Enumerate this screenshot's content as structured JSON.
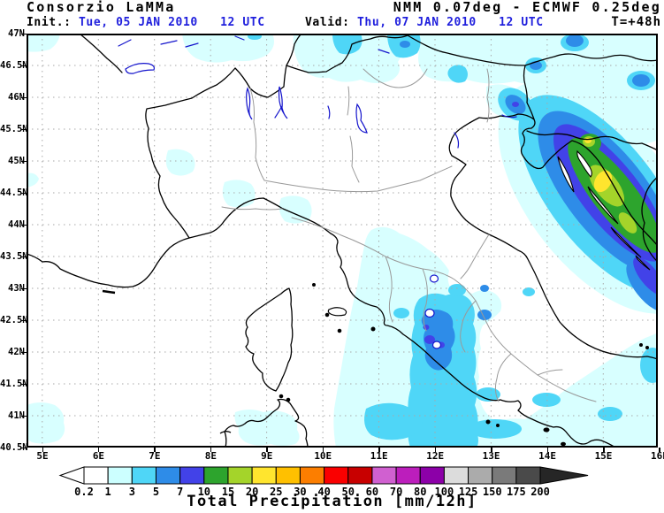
{
  "header": {
    "org": "Consorzio LaMMa",
    "model_line": "NMM 0.07deg - ECMWF 0.25deg",
    "init_label": "Init.:",
    "init_value": " Tue, 05 JAN 2010   12 UTC",
    "valid_label": "Valid:",
    "valid_value": " Thu, 07 JAN 2010   12 UTC",
    "lead": "T=+48h"
  },
  "axes": {
    "lat_labels": [
      "47N",
      "46.5N",
      "46N",
      "45.5N",
      "45N",
      "44.5N",
      "44N",
      "43.5N",
      "43N",
      "42.5N",
      "42N",
      "41.5N",
      "41N",
      "40.5N"
    ],
    "lon_labels": [
      "5E",
      "6E",
      "7E",
      "8E",
      "9E",
      "10E",
      "11E",
      "12E",
      "13E",
      "14E",
      "15E",
      "16E"
    ]
  },
  "colorbar": {
    "title": "Total Precipitation [mm/12h]",
    "ticks": [
      "0.2",
      "1",
      "3",
      "5",
      "7",
      "10",
      "15",
      "20",
      "25",
      "30",
      "40",
      "50",
      "60",
      "70",
      "80",
      "100",
      "125",
      "150",
      "175",
      "200"
    ],
    "colors": [
      "#FFFFFF",
      "#CCFFFF",
      "#4FD6F7",
      "#2E8CE8",
      "#4242E8",
      "#2DA42D",
      "#A4D42A",
      "#FFE52E",
      "#FFC000",
      "#FC7E00",
      "#FA0000",
      "#C80000",
      "#D060D0",
      "#BC1EBC",
      "#8C00A8",
      "#DCDCDC",
      "#ABABAB",
      "#7A7A7A",
      "#4A4A4A"
    ],
    "under_arrow_color": "#FFFFFF",
    "over_arrow_color": "#262626"
  },
  "colors": {
    "text_blue": "#2020DD",
    "grid_gray": "#A8A8A8",
    "coast_black": "#000000",
    "region_border_gray": "#999999",
    "lake_blue": "#1414CC",
    "precip_levels": {
      "p1": "#D8FFFF",
      "p2": "#4FD6F7",
      "p3": "#2E8CE8",
      "p4": "#4242E8",
      "p5": "#2DA42D",
      "p6": "#A4D42A",
      "p7": "#FFE52E"
    }
  }
}
